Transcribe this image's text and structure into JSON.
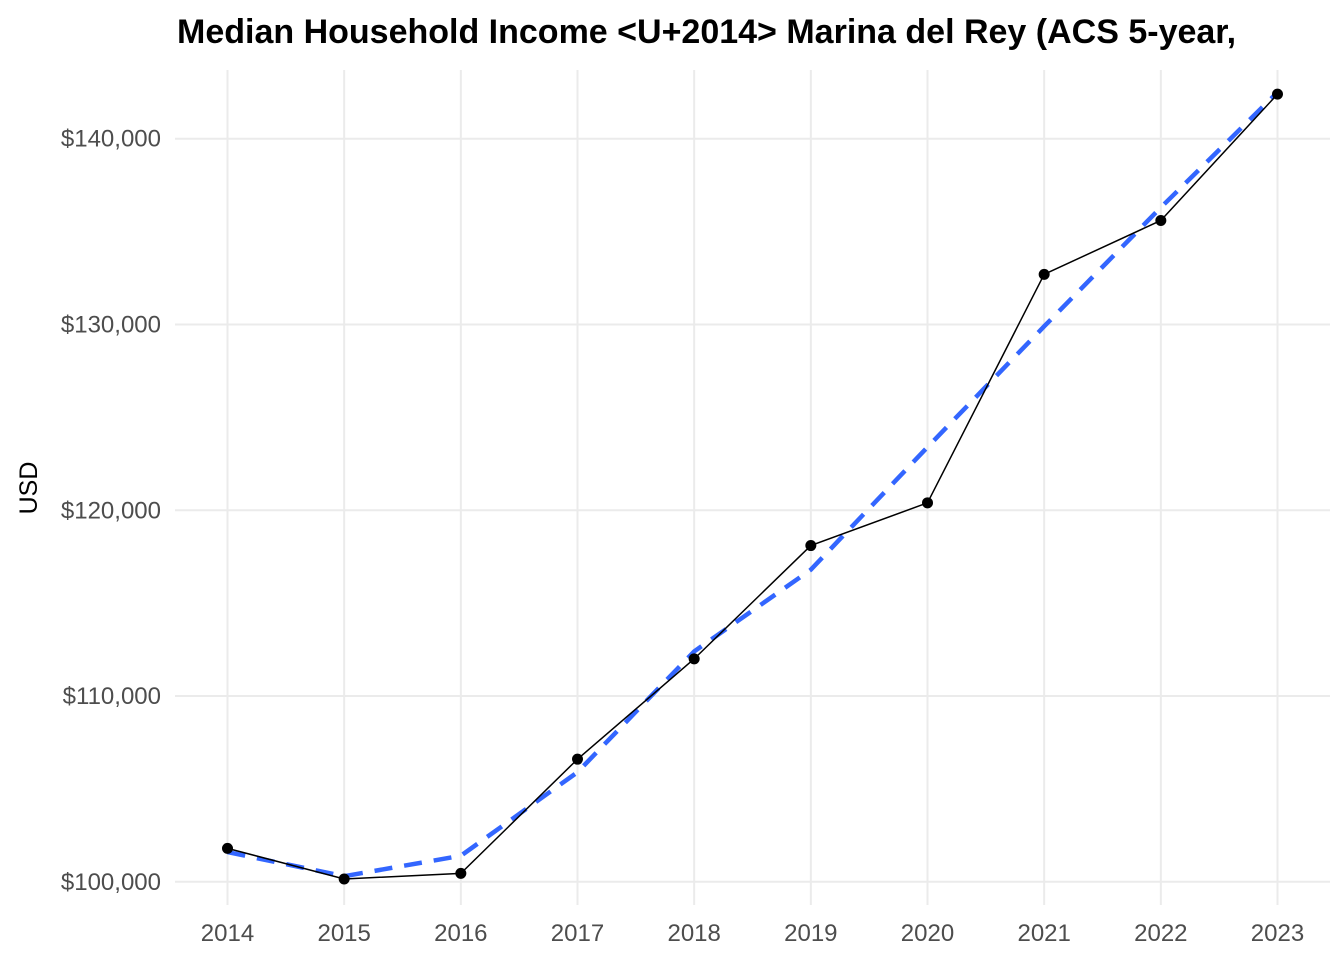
{
  "chart_data": {
    "type": "line",
    "title": "Median Household Income <U+2014> Marina del Rey (ACS 5-year,",
    "xlabel": "",
    "ylabel": "USD",
    "x": [
      2014,
      2015,
      2016,
      2017,
      2018,
      2019,
      2020,
      2021,
      2022,
      2023
    ],
    "xlim": [
      2013.55,
      2023.45
    ],
    "ylim": [
      98750,
      143700
    ],
    "x_ticks": [
      2014,
      2015,
      2016,
      2017,
      2018,
      2019,
      2020,
      2021,
      2022,
      2023
    ],
    "x_tick_labels": [
      "2014",
      "2015",
      "2016",
      "2017",
      "2018",
      "2019",
      "2020",
      "2021",
      "2022",
      "2023"
    ],
    "y_ticks": [
      100000,
      110000,
      120000,
      130000,
      140000
    ],
    "y_tick_labels": [
      "$100,000",
      "$110,000",
      "$120,000",
      "$130,000",
      "$140,000"
    ],
    "series": [
      {
        "values": [
          101800,
          100150,
          100450,
          106600,
          112000,
          118100,
          120400,
          132700,
          135600,
          142400
        ],
        "style": "solid-with-points",
        "color": "#000000"
      },
      {
        "values": [
          101600,
          100300,
          101400,
          105900,
          112400,
          116800,
          123400,
          129900,
          136300,
          142500
        ],
        "style": "dashed",
        "color": "#3366ff"
      }
    ],
    "grid": true,
    "legend": "none"
  }
}
